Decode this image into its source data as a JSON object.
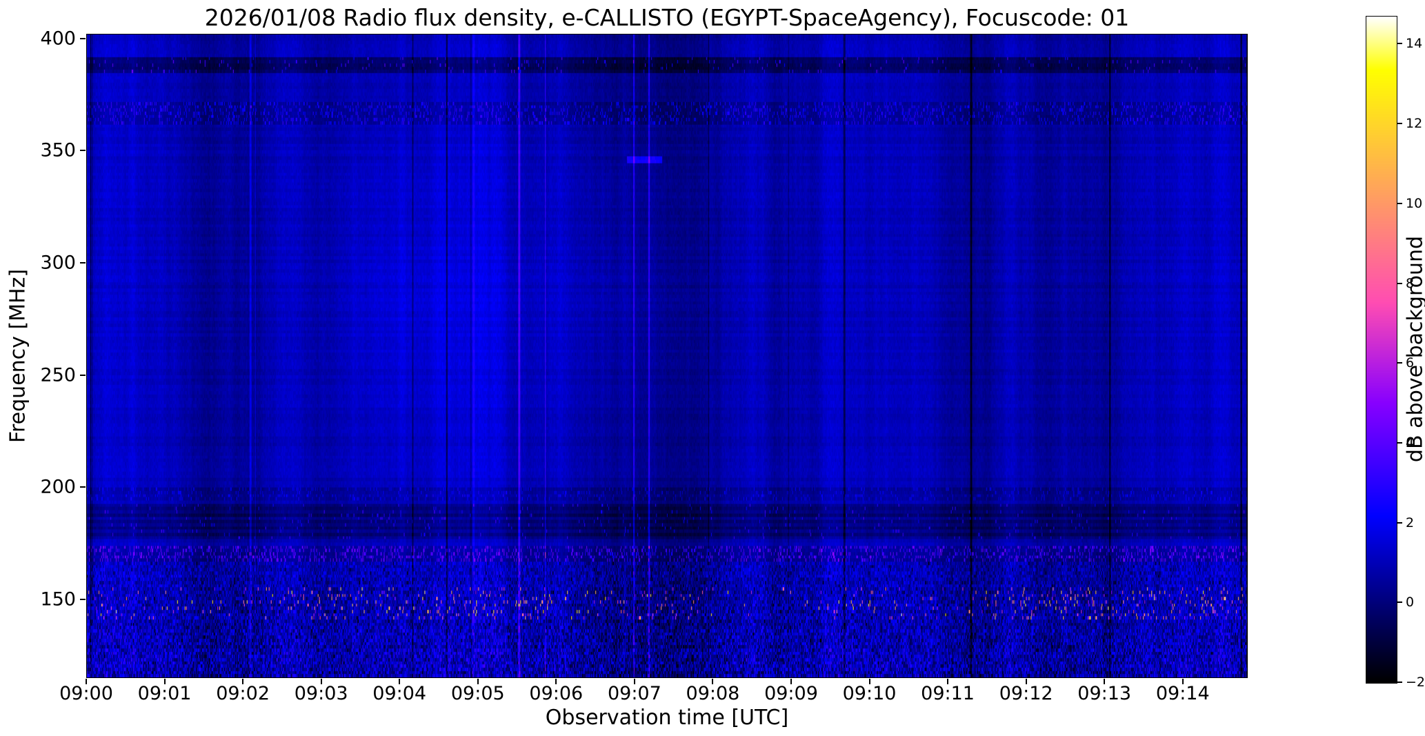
{
  "figure": {
    "background": "#ffffff",
    "text_color": "#000000"
  },
  "chart_data": {
    "type": "heatmap",
    "title": "2026/01/08  Radio flux density, e-CALLISTO (EGYPT-SpaceAgency), Focuscode: 01",
    "xlabel": "Observation time [UTC]",
    "ylabel": "Frequency [MHz]",
    "colorbar_label": "dB above background",
    "x_ticks": [
      "09:00",
      "09:01",
      "09:02",
      "09:03",
      "09:04",
      "09:05",
      "09:06",
      "09:07",
      "09:08",
      "09:09",
      "09:10",
      "09:11",
      "09:12",
      "09:13",
      "09:14"
    ],
    "x_start": "09:00",
    "duration_min": 14.83,
    "y_ticks": [
      400,
      350,
      300,
      250,
      200,
      150
    ],
    "y_range": [
      115,
      402
    ],
    "z_range": [
      -2,
      14.7
    ],
    "colorbar_ticks": [
      -2,
      0,
      2,
      4,
      6,
      8,
      10,
      12,
      14
    ],
    "colormap": "gnuplot2",
    "background_level_db": 0.85,
    "grid": false,
    "legend": "colorbar-right",
    "seed": 20260108,
    "bands": [
      {
        "freq": [
          385,
          393
        ],
        "effect": "dark",
        "amount": -1.3,
        "speckle": 0.03
      },
      {
        "freq": [
          362,
          373
        ],
        "effect": "dotted",
        "amount": 1.5,
        "density": 0.17
      },
      {
        "freq": [
          193,
          200
        ],
        "effect": "dotted",
        "amount": 0.9,
        "density": 0.1
      },
      {
        "freq": [
          176,
          192
        ],
        "effect": "dark_structured",
        "amount": -0.85
      },
      {
        "freq": [
          166,
          173
        ],
        "effect": "dotted",
        "amount": 2.6,
        "density": 0.2
      },
      {
        "freq": [
          115,
          166
        ],
        "effect": "noisy",
        "amount": 2.4
      },
      {
        "freq": [
          140,
          154
        ],
        "effect": "bursts",
        "amount": 9,
        "density": 0.05
      }
    ],
    "dark_line_times_min": [
      4.6,
      11.3,
      14.75
    ],
    "dash": {
      "freq": 346,
      "t_min": [
        6.9,
        7.35
      ],
      "amount": 2.3
    },
    "description": "Dynamic radio spectrum: quiet blue background with vertical instrumental striations and thin dark time gaps; RFI bands near 166-173, 176-192, 362-373 and 385-393 MHz; strong speckled magenta/white interference bursts below ~165 MHz, brightest around 140-154 MHz."
  }
}
